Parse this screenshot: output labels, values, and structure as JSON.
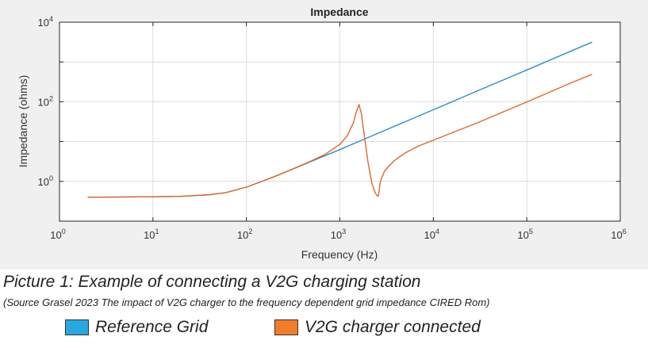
{
  "chart_data": {
    "type": "line",
    "title": "Impedance",
    "xlabel": "Frequency (Hz)",
    "ylabel": "Impedance (ohms)",
    "xscale": "log",
    "yscale": "log",
    "xlim": [
      1,
      1000000
    ],
    "ylim": [
      0.1,
      10000
    ],
    "grid": true,
    "x_ticks": [
      {
        "value": 1,
        "base": "10",
        "exp": "0"
      },
      {
        "value": 10,
        "base": "10",
        "exp": "1"
      },
      {
        "value": 100,
        "base": "10",
        "exp": "2"
      },
      {
        "value": 1000,
        "base": "10",
        "exp": "3"
      },
      {
        "value": 10000,
        "base": "10",
        "exp": "4"
      },
      {
        "value": 100000,
        "base": "10",
        "exp": "5"
      },
      {
        "value": 1000000,
        "base": "10",
        "exp": "6"
      }
    ],
    "y_ticks": [
      {
        "value": 1,
        "base": "10",
        "exp": "0"
      },
      {
        "value": 100,
        "base": "10",
        "exp": "2"
      },
      {
        "value": 10000,
        "base": "10",
        "exp": "4"
      }
    ],
    "series": [
      {
        "name": "Reference Grid",
        "color": "#2e8fc6",
        "x": [
          2,
          10,
          20,
          40,
          60,
          100,
          150,
          200,
          300,
          500,
          1000,
          1600,
          3000,
          10000,
          30000,
          100000,
          300000,
          500000
        ],
        "y": [
          0.4,
          0.41,
          0.42,
          0.46,
          0.52,
          0.72,
          1.02,
          1.32,
          1.95,
          3.2,
          6.3,
          10.1,
          19,
          63,
          190,
          630,
          1900,
          3150
        ]
      },
      {
        "name": "V2G charger connected",
        "color": "#d9692c",
        "x": [
          2,
          10,
          20,
          40,
          60,
          100,
          150,
          200,
          300,
          500,
          700,
          1000,
          1200,
          1400,
          1500,
          1600,
          1700,
          1800,
          2000,
          2200,
          2400,
          2550,
          2600,
          2700,
          3000,
          3500,
          4000,
          5000,
          7000,
          10000,
          30000,
          100000,
          300000,
          500000
        ],
        "y": [
          0.4,
          0.41,
          0.42,
          0.46,
          0.52,
          0.72,
          1.02,
          1.32,
          1.95,
          3.3,
          4.8,
          8.5,
          14,
          30,
          55,
          85,
          50,
          18,
          3,
          0.9,
          0.5,
          0.42,
          0.47,
          0.95,
          1.8,
          2.7,
          3.6,
          5.2,
          7.8,
          10.8,
          30,
          99,
          300,
          490
        ]
      }
    ]
  },
  "caption": {
    "title": "Picture 1: Example of connecting a V2G charging station",
    "source": "(Source Grasel 2023 The impact of V2G charger to the frequency dependent grid impedance CIRED Rom)"
  },
  "legend": [
    {
      "label": "Reference Grid",
      "color": "#29a8e0"
    },
    {
      "label": "V2G charger connected",
      "color": "#f07d2c"
    }
  ]
}
